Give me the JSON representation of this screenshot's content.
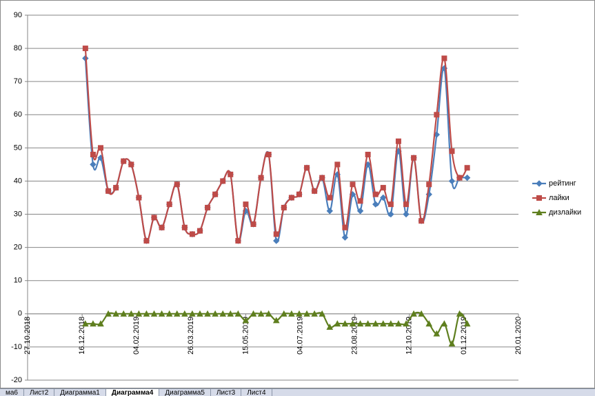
{
  "chart_data": {
    "type": "line",
    "x": [
      "19.12.2018",
      "26.12.2018",
      "02.01.2019",
      "09.01.2019",
      "16.01.2019",
      "23.01.2019",
      "30.01.2019",
      "06.02.2019",
      "13.02.2019",
      "20.02.2019",
      "27.02.2019",
      "06.03.2019",
      "13.03.2019",
      "20.03.2019",
      "27.03.2019",
      "03.04.2019",
      "10.04.2019",
      "17.04.2019",
      "24.04.2019",
      "01.05.2019",
      "08.05.2019",
      "15.05.2019",
      "22.05.2019",
      "29.05.2019",
      "05.06.2019",
      "12.06.2019",
      "19.06.2019",
      "26.06.2019",
      "03.07.2019",
      "10.07.2019",
      "17.07.2019",
      "24.07.2019",
      "31.07.2019",
      "07.08.2019",
      "14.08.2019",
      "21.08.2019",
      "28.08.2019",
      "04.09.2019",
      "11.09.2019",
      "18.09.2019",
      "25.09.2019",
      "02.10.2019",
      "09.10.2019",
      "16.10.2019",
      "23.10.2019",
      "30.10.2019",
      "06.11.2019",
      "13.11.2019",
      "20.11.2019",
      "27.11.2019",
      "04.12.2019"
    ],
    "series": [
      {
        "name": "рейтинг",
        "color": "#4a7ebb",
        "marker": "diamond",
        "values": [
          77,
          45,
          47,
          37,
          38,
          46,
          45,
          35,
          22,
          29,
          26,
          33,
          39,
          26,
          24,
          25,
          32,
          36,
          40,
          42,
          22,
          31,
          27,
          41,
          48,
          22,
          32,
          35,
          36,
          44,
          37,
          41,
          31,
          42,
          23,
          36,
          31,
          45,
          33,
          35,
          30,
          49,
          30,
          47,
          28,
          36,
          54,
          74,
          40,
          41,
          41
        ]
      },
      {
        "name": "лайки",
        "color": "#be4b48",
        "marker": "square",
        "values": [
          80,
          48,
          50,
          37,
          38,
          46,
          45,
          35,
          22,
          29,
          26,
          33,
          39,
          26,
          24,
          25,
          32,
          36,
          40,
          42,
          22,
          33,
          27,
          41,
          48,
          24,
          32,
          35,
          36,
          44,
          37,
          41,
          35,
          45,
          26,
          39,
          34,
          48,
          36,
          38,
          33,
          52,
          33,
          47,
          28,
          39,
          60,
          77,
          49,
          41,
          44
        ]
      },
      {
        "name": "дизлайки",
        "color": "#5f7f1f",
        "marker": "triangle",
        "values": [
          -3,
          -3,
          -3,
          0,
          0,
          0,
          0,
          0,
          0,
          0,
          0,
          0,
          0,
          0,
          0,
          0,
          0,
          0,
          0,
          0,
          0,
          -2,
          0,
          0,
          0,
          -2,
          0,
          0,
          0,
          0,
          0,
          0,
          -4,
          -3,
          -3,
          -3,
          -3,
          -3,
          -3,
          -3,
          -3,
          -3,
          -3,
          0,
          0,
          -3,
          -6,
          -3,
          -9,
          0,
          -3
        ]
      }
    ],
    "xlim": [
      "27.10.2018",
      "20.01.2020"
    ],
    "xticks": [
      "27.10.2018",
      "16.12.2018",
      "04.02.2019",
      "26.03.2019",
      "15.05.2019",
      "04.07.2019",
      "23.08.2019",
      "12.10.2019",
      "01.12.2019",
      "20.01.2020"
    ],
    "ylim": [
      -20,
      90
    ],
    "yticks": [
      -20,
      -10,
      0,
      10,
      20,
      30,
      40,
      50,
      60,
      70,
      80,
      90
    ],
    "grid": true,
    "smooth": true,
    "legend": "right"
  },
  "tabs": [
    "ма6",
    "Лист2",
    "Диаграмма1",
    "Диаграмма4",
    "Диаграмма5",
    "Лист3",
    "Лист4"
  ]
}
